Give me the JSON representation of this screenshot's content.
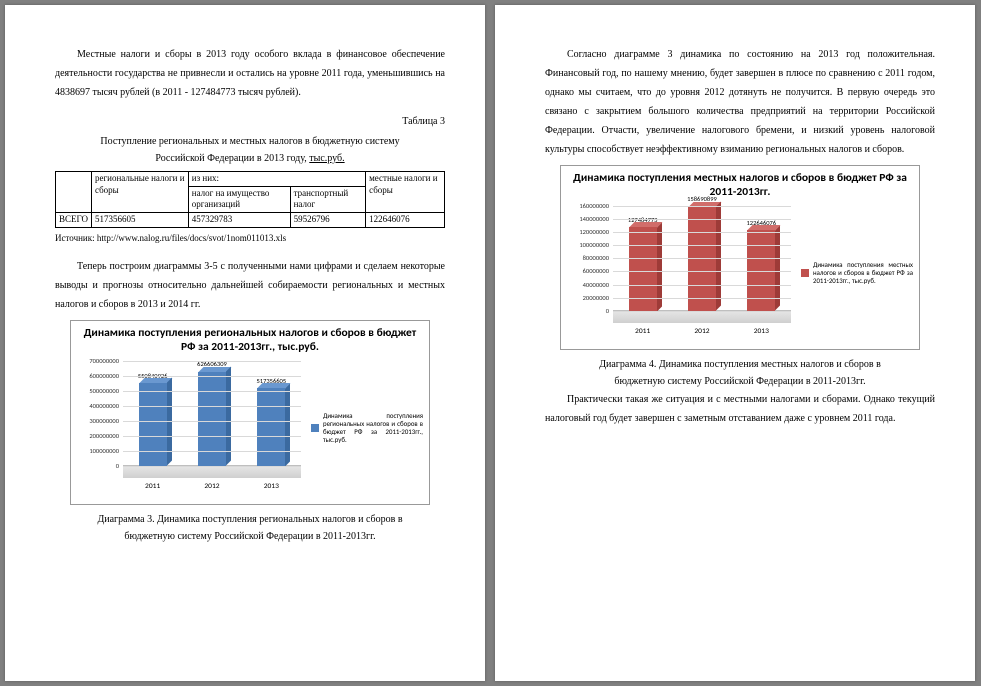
{
  "page1": {
    "para1": "Местные налоги и сборы в 2013 году особого вклада в финансовое обеспечение деятельности государства не привнесли и остались на уровне 2011 года, уменьшившись на 4838697 тысяч рублей (в 2011 - 127484773 тысяч рублей).",
    "table_label": "Таблица 3",
    "table_caption_1": "Поступление региональных и местных налогов в бюджетную систему",
    "table_caption_2": "Российской Федерации в 2013 году, ",
    "table_caption_2u": "тыс.руб.",
    "table": {
      "h_col2": "региональные налоги и сборы",
      "h_col3": "из них:",
      "h_col6": "местные налоги и сборы",
      "h_sub1": "налог на имущество организаций",
      "h_sub2": "транспортный налог",
      "row_label": "ВСЕГО",
      "v1": "517356605",
      "v2": "457329783",
      "v3": "59526796",
      "v4": "122646076"
    },
    "source": "Источник: http://www.nalog.ru/files/docs/svot/1nom011013.xls",
    "para2": "Теперь построим диаграммы 3-5 с полученными нами цифрами и сделаем некоторые выводы и прогнозы относительно дальнейшей собираемости региональных и местных налогов и сборов в 2013 и 2014 гг.",
    "chart1": {
      "title": "Динамика поступления региональных налогов и сборов в бюджет РФ за 2011-2013гг., тыс.руб.",
      "categories": [
        "2011",
        "2012",
        "2013"
      ],
      "values": [
        550840926,
        626606309,
        517356605
      ],
      "value_labels": [
        "550840926",
        "626606309",
        "517356605"
      ],
      "bar_color": "#4f81bd",
      "bar_top": "#6a98d0",
      "bar_side": "#3b6aa0",
      "ymax": 700000000,
      "ystep": 100000000,
      "yticks": [
        "0",
        "100000000",
        "200000000",
        "300000000",
        "400000000",
        "500000000",
        "600000000",
        "700000000"
      ],
      "legend": "Динамика поступления региональных налогов и сборов в бюджет РФ за 2011-2013гг., тыс.руб."
    },
    "chart1_caption_1": "Диаграмма 3. Динамика поступления региональных налогов и сборов в",
    "chart1_caption_2": "бюджетную систему Российской Федерации в 2011-2013гг."
  },
  "page2": {
    "para1": "Согласно диаграмме 3 динамика по состоянию на 2013 год положительная. Финансовый год, по нашему мнению, будет завершен в плюсе по сравнению с 2011 годом, однако мы считаем, что до уровня 2012 дотянуть не получится. В первую очередь это связано с закрытием большого количества предприятий на территории Российской Федерации. Отчасти, увеличение налогового бремени, и низкий уровень налоговой культуры способствует неэффективному взиманию региональных налогов и сборов.",
    "chart2": {
      "title": "Динамика поступления местных налогов и сборов в бюджет РФ за 2011-2013гг.",
      "categories": [
        "2011",
        "2012",
        "2013"
      ],
      "values": [
        127484773,
        158690899,
        122646076
      ],
      "value_labels": [
        "127484773",
        "158690899",
        "122646076"
      ],
      "bar_color": "#c0504d",
      "bar_top": "#d16d6a",
      "bar_side": "#9e3b38",
      "ymax": 160000000,
      "ystep": 20000000,
      "yticks": [
        "0",
        "20000000",
        "40000000",
        "60000000",
        "80000000",
        "100000000",
        "120000000",
        "140000000",
        "160000000"
      ],
      "legend": "Динамика поступления местных налогов и сборов в бюджет РФ за 2011-2013гг., тыс.руб."
    },
    "chart2_caption_1": "Диаграмма 4. Динамика поступления местных налогов и сборов в",
    "chart2_caption_2": "бюджетную систему Российской Федерации в 2011-2013гг.",
    "para2": "Практически такая же ситуация и с местными налогами и сборами. Однако текущий налоговый год будет завершен с заметным отставанием даже с уровнем 2011 года."
  }
}
